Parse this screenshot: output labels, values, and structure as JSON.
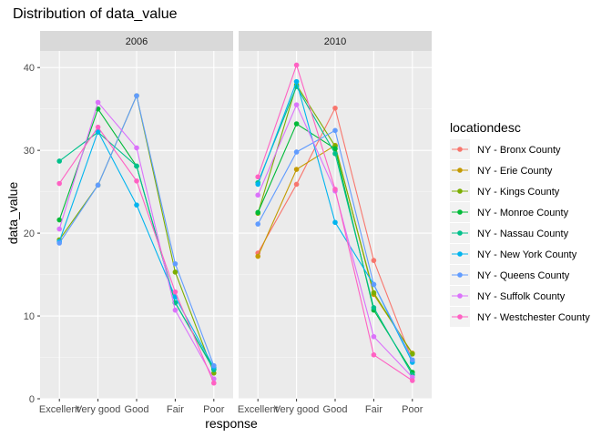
{
  "chart_data": {
    "type": "line",
    "title": "Distribution of data_value",
    "xlabel": "response",
    "ylabel": "data_value",
    "ylim": [
      0,
      42
    ],
    "y_ticks": [
      0,
      10,
      20,
      30,
      40
    ],
    "categories": [
      "Excellent",
      "Very good",
      "Good",
      "Fair",
      "Poor"
    ],
    "legend_title": "locationdesc",
    "legend_position": "right",
    "series_meta": [
      {
        "name": "NY - Bronx County",
        "color": "#F8766D"
      },
      {
        "name": "NY - Erie County",
        "color": "#C49A00"
      },
      {
        "name": "NY - Kings County",
        "color": "#7CAE00"
      },
      {
        "name": "NY - Monroe County",
        "color": "#00BA38"
      },
      {
        "name": "NY - Nassau County",
        "color": "#00C08B"
      },
      {
        "name": "NY - New York County",
        "color": "#00B4EF"
      },
      {
        "name": "NY - Queens County",
        "color": "#619CFF"
      },
      {
        "name": "NY - Suffolk County",
        "color": "#DB72FB"
      },
      {
        "name": "NY - Westchester County",
        "color": "#FF61C3"
      }
    ],
    "panels": [
      {
        "label": "2006",
        "series": [
          {
            "name": "NY - Kings County",
            "values": [
              19.2,
              25.8,
              36.6,
              15.3,
              3.1
            ]
          },
          {
            "name": "NY - Monroe County",
            "values": [
              21.6,
              35.0,
              28.1,
              11.6,
              3.6
            ]
          },
          {
            "name": "NY - Nassau County",
            "values": [
              28.7,
              32.2,
              28.1,
              11.6,
              3.5
            ]
          },
          {
            "name": "NY - New York County",
            "values": [
              19.0,
              32.3,
              23.4,
              12.3,
              3.8
            ]
          },
          {
            "name": "NY - Queens County",
            "values": [
              18.8,
              25.8,
              36.6,
              16.3,
              4.0
            ]
          },
          {
            "name": "NY - Suffolk County",
            "values": [
              20.5,
              35.8,
              30.3,
              10.7,
              2.4
            ]
          },
          {
            "name": "NY - Westchester County",
            "values": [
              26.0,
              32.8,
              26.3,
              12.9,
              1.9
            ]
          }
        ]
      },
      {
        "label": "2010",
        "series": [
          {
            "name": "NY - Bronx County",
            "values": [
              17.6,
              25.9,
              35.1,
              16.7,
              4.6
            ]
          },
          {
            "name": "NY - Erie County",
            "values": [
              17.2,
              27.7,
              30.6,
              12.6,
              5.5
            ]
          },
          {
            "name": "NY - Kings County",
            "values": [
              22.4,
              37.9,
              30.5,
              12.8,
              5.4
            ]
          },
          {
            "name": "NY - Monroe County",
            "values": [
              22.5,
              33.2,
              30.2,
              10.7,
              3.2
            ]
          },
          {
            "name": "NY - Nassau County",
            "values": [
              26.1,
              37.7,
              29.6,
              11.0,
              2.9
            ]
          },
          {
            "name": "NY - New York County",
            "values": [
              25.9,
              38.3,
              21.3,
              13.8,
              4.4
            ]
          },
          {
            "name": "NY - Queens County",
            "values": [
              21.1,
              29.8,
              32.4,
              13.8,
              4.7
            ]
          },
          {
            "name": "NY - Suffolk County",
            "values": [
              24.6,
              35.5,
              25.1,
              7.5,
              2.6
            ]
          },
          {
            "name": "NY - Westchester County",
            "values": [
              26.8,
              40.3,
              25.3,
              5.3,
              2.2
            ]
          }
        ]
      }
    ]
  }
}
